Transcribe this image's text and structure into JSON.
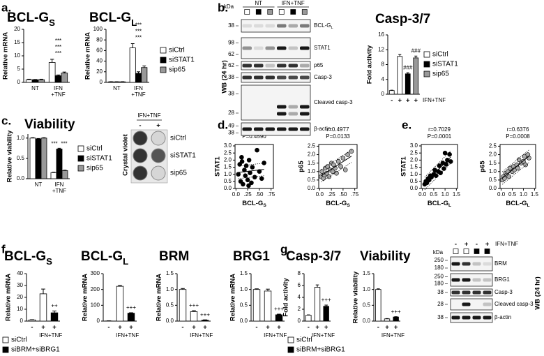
{
  "panels": [
    "a.",
    "b.",
    "c.",
    "d.",
    "e.",
    "f.",
    "g."
  ],
  "chart_data": [
    {
      "type": "bar",
      "title": "BCL-G",
      "title_sub": "S",
      "ylabel": "Relative mRNA",
      "categories": [
        "NT",
        "IFN +TNF"
      ],
      "series": [
        {
          "color": "#ffffff",
          "values": [
            1,
            7.5
          ],
          "errors": [
            0.2,
            1.2
          ]
        },
        {
          "color": "#000000",
          "values": [
            1,
            2.5
          ],
          "errors": [
            0.1,
            0.3
          ]
        },
        {
          "color": "#999999",
          "values": [
            1,
            3.5
          ],
          "errors": [
            0.2,
            0.4
          ]
        }
      ],
      "ylim": [
        0,
        20
      ],
      "yticks": [
        0,
        5,
        10,
        15,
        20
      ],
      "annotations": [
        "***",
        "***",
        "***"
      ]
    },
    {
      "type": "bar",
      "title": "BCL-G",
      "title_sub": "L",
      "ylabel": "Relative mRNA",
      "categories": [
        "NT",
        "IFN +TNF"
      ],
      "series": [
        {
          "name": "siCtrl",
          "color": "#ffffff",
          "values": [
            1,
            65
          ],
          "errors": [
            0.3,
            8
          ]
        },
        {
          "name": "siSTAT1",
          "color": "#000000",
          "values": [
            1,
            17
          ],
          "errors": [
            0.2,
            3
          ]
        },
        {
          "name": "sip65",
          "color": "#999999",
          "values": [
            1,
            28
          ],
          "errors": [
            0.3,
            3
          ]
        }
      ],
      "ylim": [
        0,
        100
      ],
      "yticks": [
        0,
        20,
        40,
        60,
        80,
        100
      ],
      "annotations": [
        "***",
        "***",
        "***"
      ]
    },
    {
      "type": "bar",
      "title": "Casp-3/7",
      "ylabel": "Fold activity",
      "categories": [
        "-",
        "+",
        "+",
        "+"
      ],
      "xlabel": "IFN+TNF",
      "series": [
        {
          "name": "siCtrl",
          "color": "#ffffff",
          "values": [
            1,
            10.2,
            null,
            null
          ],
          "errors": [
            0.1,
            0.5,
            null,
            null
          ]
        },
        {
          "name": "siSTAT1",
          "color": "#000000",
          "values": [
            null,
            null,
            5.5,
            null
          ],
          "errors": [
            null,
            null,
            0.3,
            null
          ]
        },
        {
          "name": "sip65",
          "color": "#999999",
          "values": [
            null,
            null,
            null,
            9.8
          ],
          "errors": [
            null,
            null,
            null,
            0.5
          ]
        }
      ],
      "ylim": [
        0,
        16
      ],
      "yticks": [
        0,
        4,
        8,
        12,
        16
      ],
      "annotations": [
        "###",
        "###"
      ]
    },
    {
      "type": "bar",
      "title": "Viability",
      "ylabel": "Relative viability",
      "categories": [
        "NT",
        "IFN +TNF"
      ],
      "series": [
        {
          "name": "siCtrl",
          "color": "#ffffff",
          "values": [
            1.0,
            0.15
          ],
          "errors": [
            0.01,
            0.01
          ]
        },
        {
          "name": "siSTAT1",
          "color": "#000000",
          "values": [
            0.98,
            0.73
          ],
          "errors": [
            0.01,
            0.02
          ]
        },
        {
          "name": "sip65",
          "color": "#999999",
          "values": [
            1.0,
            0.2
          ],
          "errors": [
            0.01,
            0.01
          ]
        }
      ],
      "ylim": [
        0,
        1.1
      ],
      "yticks": [
        {
          "value": 0,
          "label": "0.0"
        },
        0.5,
        {
          "value": 1,
          "label": "1.0"
        }
      ],
      "annotations": [
        "***",
        "***"
      ]
    },
    {
      "type": "scatter",
      "annotations": [
        "r=0.1587",
        "P=0.4590"
      ],
      "ylabel": "STAT1",
      "xlabel": "BCL-G",
      "xlabel_sub": "S",
      "x": [
        0.05,
        0.08,
        0.1,
        0.12,
        0.15,
        0.18,
        0.2,
        0.22,
        0.25,
        0.28,
        0.3,
        0.33,
        0.35,
        0.4,
        0.45,
        0.5,
        0.55,
        0.6,
        0.13,
        0.27
      ],
      "series": [
        {
          "color": "#000000",
          "values": [
            1.0,
            1.7,
            0.5,
            2.2,
            0.3,
            1.3,
            0.9,
            1.6,
            0.6,
            2.0,
            1.1,
            0.4,
            1.5,
            0.8,
            2.7,
            1.2,
            0.7,
            1.8,
            1.9,
            0.2
          ]
        }
      ],
      "xlim": [
        -0.02,
        0.8
      ],
      "xticks": [
        {
          "value": 0,
          "label": "0.0"
        },
        {
          "value": 0.25,
          "label": ".25"
        },
        {
          "value": 0.5,
          "label": ".50"
        },
        {
          "value": 0.75,
          "label": ".75"
        }
      ],
      "ylim": [
        0,
        3.1
      ],
      "yticks": [
        {
          "value": 0,
          "label": "0.0"
        },
        0.5,
        {
          "value": 1,
          "label": "1.0"
        },
        1.5,
        {
          "value": 2,
          "label": "2.0"
        },
        2.5,
        {
          "value": 3,
          "label": "3.0"
        }
      ]
    },
    {
      "type": "scatter",
      "annotations": [
        "r=0.4977",
        "P=0.0133"
      ],
      "ylabel": "p65",
      "xlabel": "BCL-G",
      "xlabel_sub": "S",
      "x": [
        0.03,
        0.05,
        0.08,
        0.1,
        0.12,
        0.15,
        0.17,
        0.2,
        0.22,
        0.25,
        0.28,
        0.3,
        0.33,
        0.36,
        0.4,
        0.45,
        0.5,
        0.55,
        0.6,
        0.68
      ],
      "series": [
        {
          "color": "#aaaaaa",
          "values": [
            0.7,
            1.0,
            0.6,
            0.8,
            1.2,
            0.9,
            1.3,
            0.7,
            1.1,
            1.5,
            1.0,
            1.4,
            1.2,
            0.9,
            1.6,
            1.3,
            1.8,
            1.1,
            2.0,
            2.2
          ]
        }
      ],
      "xlim": [
        -0.02,
        0.8
      ],
      "xticks": [
        {
          "value": 0,
          "label": "0.0"
        },
        {
          "value": 0.25,
          "label": ".25"
        },
        {
          "value": 0.5,
          "label": ".50"
        },
        {
          "value": 0.75,
          "label": ".75"
        }
      ],
      "ylim": [
        0,
        2.6
      ],
      "yticks": [
        {
          "value": 0,
          "label": "0.0"
        },
        0.5,
        {
          "value": 1,
          "label": "1.0"
        },
        1.5,
        {
          "value": 2,
          "label": "2.0"
        },
        2.5
      ]
    },
    {
      "type": "scatter",
      "annotations": [
        "r=0.7029",
        "P=0.0001"
      ],
      "ylabel": "STAT1",
      "xlabel": "BCL-G",
      "xlabel_sub": "L",
      "x": [
        0.1,
        0.15,
        0.2,
        0.25,
        0.3,
        0.35,
        0.4,
        0.5,
        0.55,
        0.6,
        0.7,
        0.75,
        0.8,
        0.9,
        0.95,
        1.0,
        1.05,
        1.1,
        1.2,
        1.25
      ],
      "series": [
        {
          "color": "#000000",
          "values": [
            0.3,
            0.5,
            0.4,
            0.7,
            0.6,
            0.9,
            0.8,
            1.0,
            1.3,
            0.9,
            1.2,
            1.6,
            1.1,
            1.8,
            1.4,
            2.5,
            1.7,
            2.0,
            2.4,
            1.9
          ]
        }
      ],
      "xlim": [
        -0.05,
        1.55
      ],
      "xticks": [
        {
          "value": 0,
          "label": "0.0"
        },
        0.5,
        {
          "value": 1,
          "label": "1.0"
        },
        1.5
      ],
      "ylim": [
        0,
        3.1
      ],
      "yticks": [
        {
          "value": 0,
          "label": "0.0"
        },
        0.5,
        {
          "value": 1,
          "label": "1.0"
        },
        1.5,
        {
          "value": 2,
          "label": "2.0"
        },
        2.5,
        {
          "value": 3,
          "label": "3.0"
        }
      ]
    },
    {
      "type": "scatter",
      "annotations": [
        "r=0.6376",
        "P=0.0008"
      ],
      "ylabel": "p65",
      "xlabel": "BCL-G",
      "xlabel_sub": "L",
      "x": [
        0.05,
        0.1,
        0.15,
        0.2,
        0.25,
        0.3,
        0.35,
        0.4,
        0.5,
        0.55,
        0.6,
        0.7,
        0.75,
        0.8,
        0.9,
        1.0,
        1.05,
        1.1,
        1.2,
        1.25
      ],
      "series": [
        {
          "color": "#aaaaaa",
          "values": [
            0.5,
            0.7,
            0.6,
            0.9,
            0.8,
            1.0,
            0.7,
            1.2,
            1.0,
            1.3,
            1.1,
            1.4,
            1.2,
            1.7,
            1.5,
            1.6,
            1.9,
            1.4,
            2.0,
            1.8
          ]
        }
      ],
      "xlim": [
        -0.05,
        1.55
      ],
      "xticks": [
        {
          "value": 0,
          "label": "0.0"
        },
        0.5,
        {
          "value": 1,
          "label": "1.0"
        },
        1.5
      ],
      "ylim": [
        0,
        2.6
      ],
      "yticks": [
        {
          "value": 0,
          "label": "0.0"
        },
        0.5,
        {
          "value": 1,
          "label": "1.0"
        },
        1.5,
        {
          "value": 2,
          "label": "2.0"
        },
        2.5
      ]
    },
    {
      "type": "bar",
      "title": "BCL-G",
      "title_sub": "S",
      "ylabel": "Relative mRNA",
      "categories": [
        "-",
        "+",
        "+"
      ],
      "xlabel": "IFN+TNF",
      "series": [
        {
          "name": "siCtrl",
          "color": "#ffffff",
          "values": [
            1,
            23,
            null
          ],
          "errors": [
            0.2,
            4,
            null
          ]
        },
        {
          "name": "siBRM+siBRG1",
          "color": "#000000",
          "values": [
            null,
            null,
            7
          ],
          "errors": [
            null,
            null,
            1.5
          ]
        }
      ],
      "ylim": [
        0,
        40
      ],
      "yticks": [
        0,
        10,
        20,
        30,
        40
      ],
      "annotations": [
        "++"
      ]
    },
    {
      "type": "bar",
      "title": "BCL-G",
      "title_sub": "L",
      "ylabel": "Relative mRNA",
      "categories": [
        "-",
        "+",
        "+"
      ],
      "xlabel": "IFN+TNF",
      "series": [
        {
          "color": "#ffffff",
          "values": [
            1,
            220,
            null
          ],
          "errors": [
            1,
            5,
            null
          ]
        },
        {
          "color": "#000000",
          "values": [
            null,
            null,
            50
          ],
          "errors": [
            null,
            null,
            3
          ]
        }
      ],
      "ylim": [
        0,
        300
      ],
      "yticks": [
        0,
        100,
        200,
        300
      ],
      "annotations": [
        "+++"
      ]
    },
    {
      "type": "bar",
      "title": "BRM",
      "ylabel": "Relative mRNA",
      "categories": [
        "-",
        "+",
        "+"
      ],
      "xlabel": "IFN+TNF",
      "series": [
        {
          "color": "#ffffff",
          "values": [
            1.0,
            0.3,
            null
          ],
          "errors": [
            0.03,
            0.03,
            null
          ]
        },
        {
          "color": "#000000",
          "values": [
            null,
            null,
            0.03
          ],
          "errors": [
            null,
            null,
            0.01
          ]
        }
      ],
      "ylim": [
        0,
        1.5
      ],
      "yticks": [
        {
          "value": 0,
          "label": "0.0"
        },
        0.5,
        {
          "value": 1,
          "label": "1.0"
        },
        1.5
      ],
      "annotations": [
        "+++",
        "+++"
      ]
    },
    {
      "type": "bar",
      "title": "BRG1",
      "ylabel": "Relative mRNA",
      "categories": [
        "-",
        "+",
        "+"
      ],
      "xlabel": "IFN+TNF",
      "series": [
        {
          "color": "#ffffff",
          "values": [
            1.0,
            0.95,
            null
          ],
          "errors": [
            0.02,
            0.06,
            null
          ]
        },
        {
          "color": "#000000",
          "values": [
            null,
            null,
            0.2
          ],
          "errors": [
            null,
            null,
            0.02
          ]
        }
      ],
      "ylim": [
        0,
        1.5
      ],
      "yticks": [
        {
          "value": 0,
          "label": "0.0"
        },
        0.5,
        {
          "value": 1,
          "label": "1.0"
        },
        1.5
      ],
      "annotations": [
        "+++"
      ]
    },
    {
      "type": "bar",
      "title": "Casp-3/7",
      "ylabel": "Fold activity",
      "categories": [
        "-",
        "+",
        "+"
      ],
      "xlabel": "IFN+TNF",
      "series": [
        {
          "name": "siCtrl",
          "color": "#ffffff",
          "values": [
            1,
            5.7,
            null
          ],
          "errors": [
            0.05,
            0.4,
            null
          ]
        },
        {
          "name": "siBRM+siBRG1",
          "color": "#000000",
          "values": [
            null,
            null,
            2.5
          ],
          "errors": [
            null,
            null,
            0.2
          ]
        }
      ],
      "ylim": [
        0,
        8
      ],
      "yticks": [
        0,
        2,
        4,
        6,
        8
      ],
      "annotations": [
        "+++"
      ]
    },
    {
      "type": "bar",
      "title": "Viability",
      "ylabel": "Relative viability",
      "categories": [
        "-",
        "+",
        "+"
      ],
      "xlabel": "IFN+TNF",
      "series": [
        {
          "color": "#ffffff",
          "values": [
            1.0,
            0.07,
            null
          ],
          "errors": [
            0.02,
            0.01,
            null
          ]
        },
        {
          "color": "#000000",
          "values": [
            null,
            null,
            0.13
          ],
          "errors": [
            null,
            null,
            0.01
          ]
        }
      ],
      "ylim": [
        0,
        1.5
      ],
      "yticks": [
        {
          "value": 0,
          "label": "0.0"
        },
        0.5,
        {
          "value": 1,
          "label": "1.0"
        },
        1.5
      ],
      "annotations": [
        "+++"
      ]
    }
  ],
  "blots": [
    {
      "kda": "kDa",
      "groups": [
        "NT",
        "IFN+TNF"
      ],
      "lane_colors": [
        "#ffffff",
        "#000000",
        "#999999",
        "#ffffff",
        "#000000",
        "#999999"
      ],
      "wb": "WB (24 hr)",
      "rows": [
        {
          "label": "BCL-G",
          "label_sub": "L",
          "markers": [
            38
          ]
        },
        {
          "label": "STAT1",
          "markers": [
            98,
            62
          ]
        },
        {
          "label": "p65",
          "markers": [
            62
          ]
        },
        {
          "label": "Casp-3",
          "markers": [
            38
          ]
        },
        {
          "label": "Cleaved casp-3",
          "markers": [
            38,
            28
          ]
        },
        {
          "label": "β-actin",
          "markers": [
            49,
            38
          ]
        }
      ]
    },
    {
      "kda": "kDa",
      "signs": [
        "-",
        "+",
        "-",
        "+"
      ],
      "treatment": "IFN+TNF",
      "lane_colors": [
        "#ffffff",
        "#ffffff",
        "#000000",
        "#000000"
      ],
      "wb": "WB (24 hr)",
      "rows": [
        {
          "label": "BRM",
          "markers": [
            250,
            180
          ]
        },
        {
          "label": "BRG1",
          "markers": [
            250,
            180
          ]
        },
        {
          "label": "Casp-3",
          "markers": [
            38
          ]
        },
        {
          "label": "Cleaved casp-3",
          "markers": [
            28
          ]
        },
        {
          "label": "β-actin",
          "markers": [
            38
          ]
        }
      ]
    }
  ],
  "crystal": {
    "treatment": "IFN+TNF",
    "signs": [
      "-",
      "+"
    ],
    "rows": [
      "siCtrl",
      "siSTAT1",
      "sip65"
    ],
    "label": "Crystal violet"
  }
}
